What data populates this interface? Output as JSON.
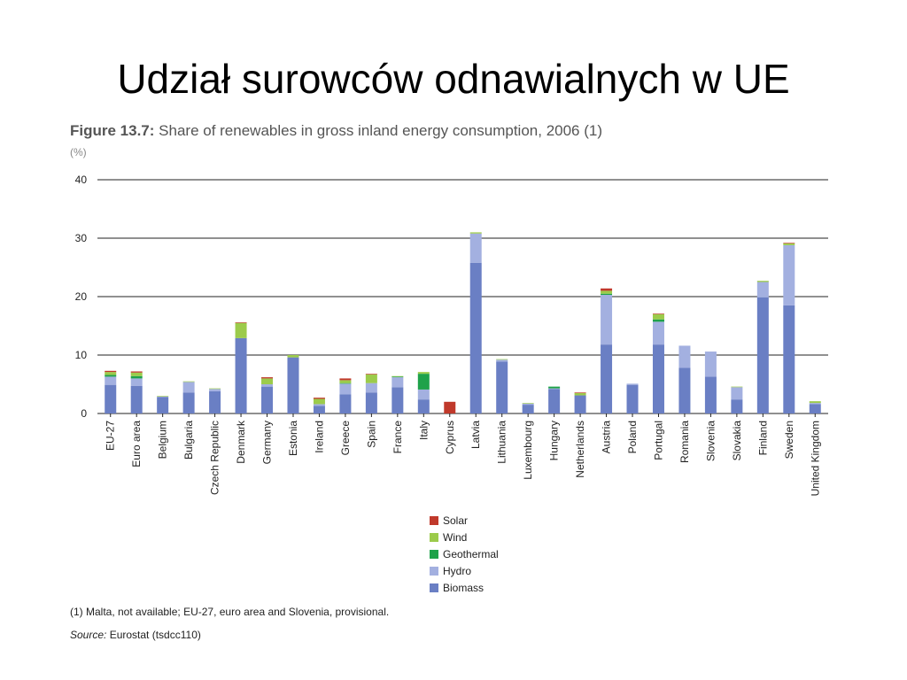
{
  "slide": {
    "title": "Udział surowców odnawialnych w UE"
  },
  "figure": {
    "label": "Figure 13.7:",
    "caption": "Share of renewables in gross inland energy consumption, 2006 (1)",
    "unit": "(%)",
    "footnote": "(1) Malta, not available; EU-27, euro area and Slovenia, provisional.",
    "source_label": "Source:",
    "source_text": "Eurostat (tsdcc110)"
  },
  "colors": {
    "Biomass": "#6a7fc4",
    "Hydro": "#a3b0e0",
    "Geothermal": "#1fa24a",
    "Wind": "#9ccb4b",
    "Solar": "#c0392b"
  },
  "legend": [
    "Solar",
    "Wind",
    "Geothermal",
    "Hydro",
    "Biomass"
  ],
  "chart_data": {
    "type": "bar",
    "stacked": true,
    "ylim": [
      0,
      40
    ],
    "yticks": [
      0,
      10,
      20,
      30,
      40
    ],
    "grid": true,
    "legend_position": "bottom-center",
    "categories": [
      "EU-27",
      "Euro area",
      "Belgium",
      "Bulgaria",
      "Czech Republic",
      "Denmark",
      "Germany",
      "Estonia",
      "Ireland",
      "Greece",
      "Spain",
      "France",
      "Italy",
      "Cyprus",
      "Latvia",
      "Lithuania",
      "Luxembourg",
      "Hungary",
      "Netherlands",
      "Austria",
      "Poland",
      "Portugal",
      "Romania",
      "Slovenia",
      "Slovakia",
      "Finland",
      "Sweden",
      "United Kingdom"
    ],
    "series": [
      {
        "name": "Biomass",
        "values": [
          4.9,
          4.7,
          2.8,
          3.6,
          3.8,
          12.9,
          4.6,
          9.6,
          1.3,
          3.3,
          3.6,
          4.5,
          2.4,
          0.0,
          25.8,
          8.9,
          1.5,
          4.2,
          3.1,
          11.8,
          4.9,
          11.8,
          7.8,
          6.3,
          2.4,
          19.9,
          18.5,
          1.6
        ]
      },
      {
        "name": "Hydro",
        "values": [
          1.4,
          1.3,
          0.1,
          1.8,
          0.4,
          0.0,
          0.4,
          0.0,
          0.3,
          1.8,
          1.6,
          1.7,
          1.7,
          0.0,
          5.0,
          0.3,
          0.2,
          0.1,
          0.0,
          8.5,
          0.2,
          3.9,
          3.8,
          4.3,
          2.1,
          2.6,
          10.3,
          0.2
        ]
      },
      {
        "name": "Geothermal",
        "values": [
          0.3,
          0.4,
          0.0,
          0.0,
          0.0,
          0.0,
          0.0,
          0.0,
          0.0,
          0.1,
          0.0,
          0.1,
          2.7,
          0.0,
          0.0,
          0.0,
          0.0,
          0.3,
          0.0,
          0.2,
          0.0,
          0.4,
          0.0,
          0.0,
          0.0,
          0.0,
          0.0,
          0.0
        ]
      },
      {
        "name": "Wind",
        "values": [
          0.5,
          0.6,
          0.1,
          0.1,
          0.1,
          2.6,
          1.0,
          0.4,
          0.9,
          0.5,
          1.5,
          0.1,
          0.3,
          0.0,
          0.2,
          0.1,
          0.1,
          0.0,
          0.4,
          0.5,
          0.0,
          0.9,
          0.0,
          0.0,
          0.1,
          0.2,
          0.3,
          0.3
        ]
      },
      {
        "name": "Solar",
        "values": [
          0.2,
          0.2,
          0.0,
          0.0,
          0.0,
          0.1,
          0.2,
          0.0,
          0.2,
          0.3,
          0.1,
          0.0,
          0.0,
          2.0,
          0.0,
          0.0,
          0.0,
          0.0,
          0.1,
          0.4,
          0.0,
          0.1,
          0.0,
          0.0,
          0.0,
          0.0,
          0.1,
          0.0
        ]
      }
    ]
  }
}
